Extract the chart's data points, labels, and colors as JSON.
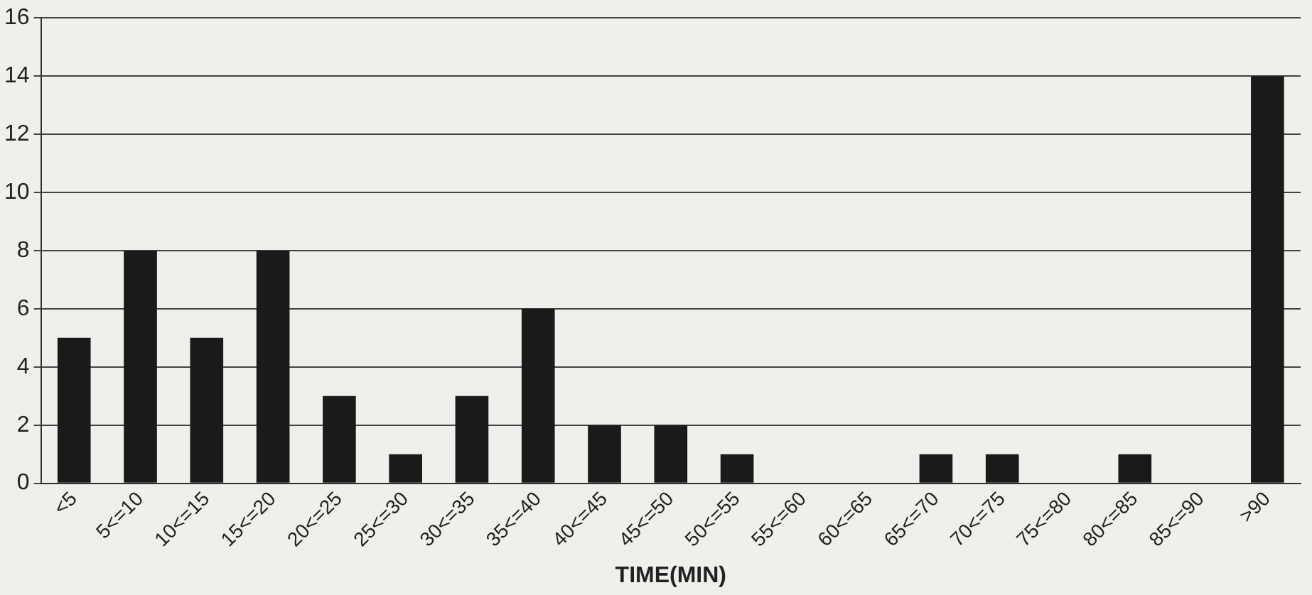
{
  "chart_data": {
    "type": "bar",
    "xlabel": "TIME(MIN)",
    "categories": [
      "<5",
      "5<=10",
      "10<=15",
      "15<=20",
      "20<=25",
      "25<=30",
      "30<=35",
      "35<=40",
      "40<=45",
      "45<=50",
      "50<=55",
      "55<=60",
      "60<=65",
      "65<=70",
      "70<=75",
      "75<=80",
      "80<=85",
      "85<=90",
      ">90"
    ],
    "values": [
      5,
      8,
      5,
      8,
      3,
      1,
      3,
      6,
      2,
      2,
      1,
      0,
      0,
      1,
      1,
      0,
      1,
      0,
      14
    ],
    "color": "#1a1a1a",
    "ylim": [
      0,
      16
    ],
    "yticks": [
      0,
      2,
      4,
      6,
      8,
      10,
      12,
      14,
      16
    ],
    "grid": "y",
    "legend": false
  }
}
